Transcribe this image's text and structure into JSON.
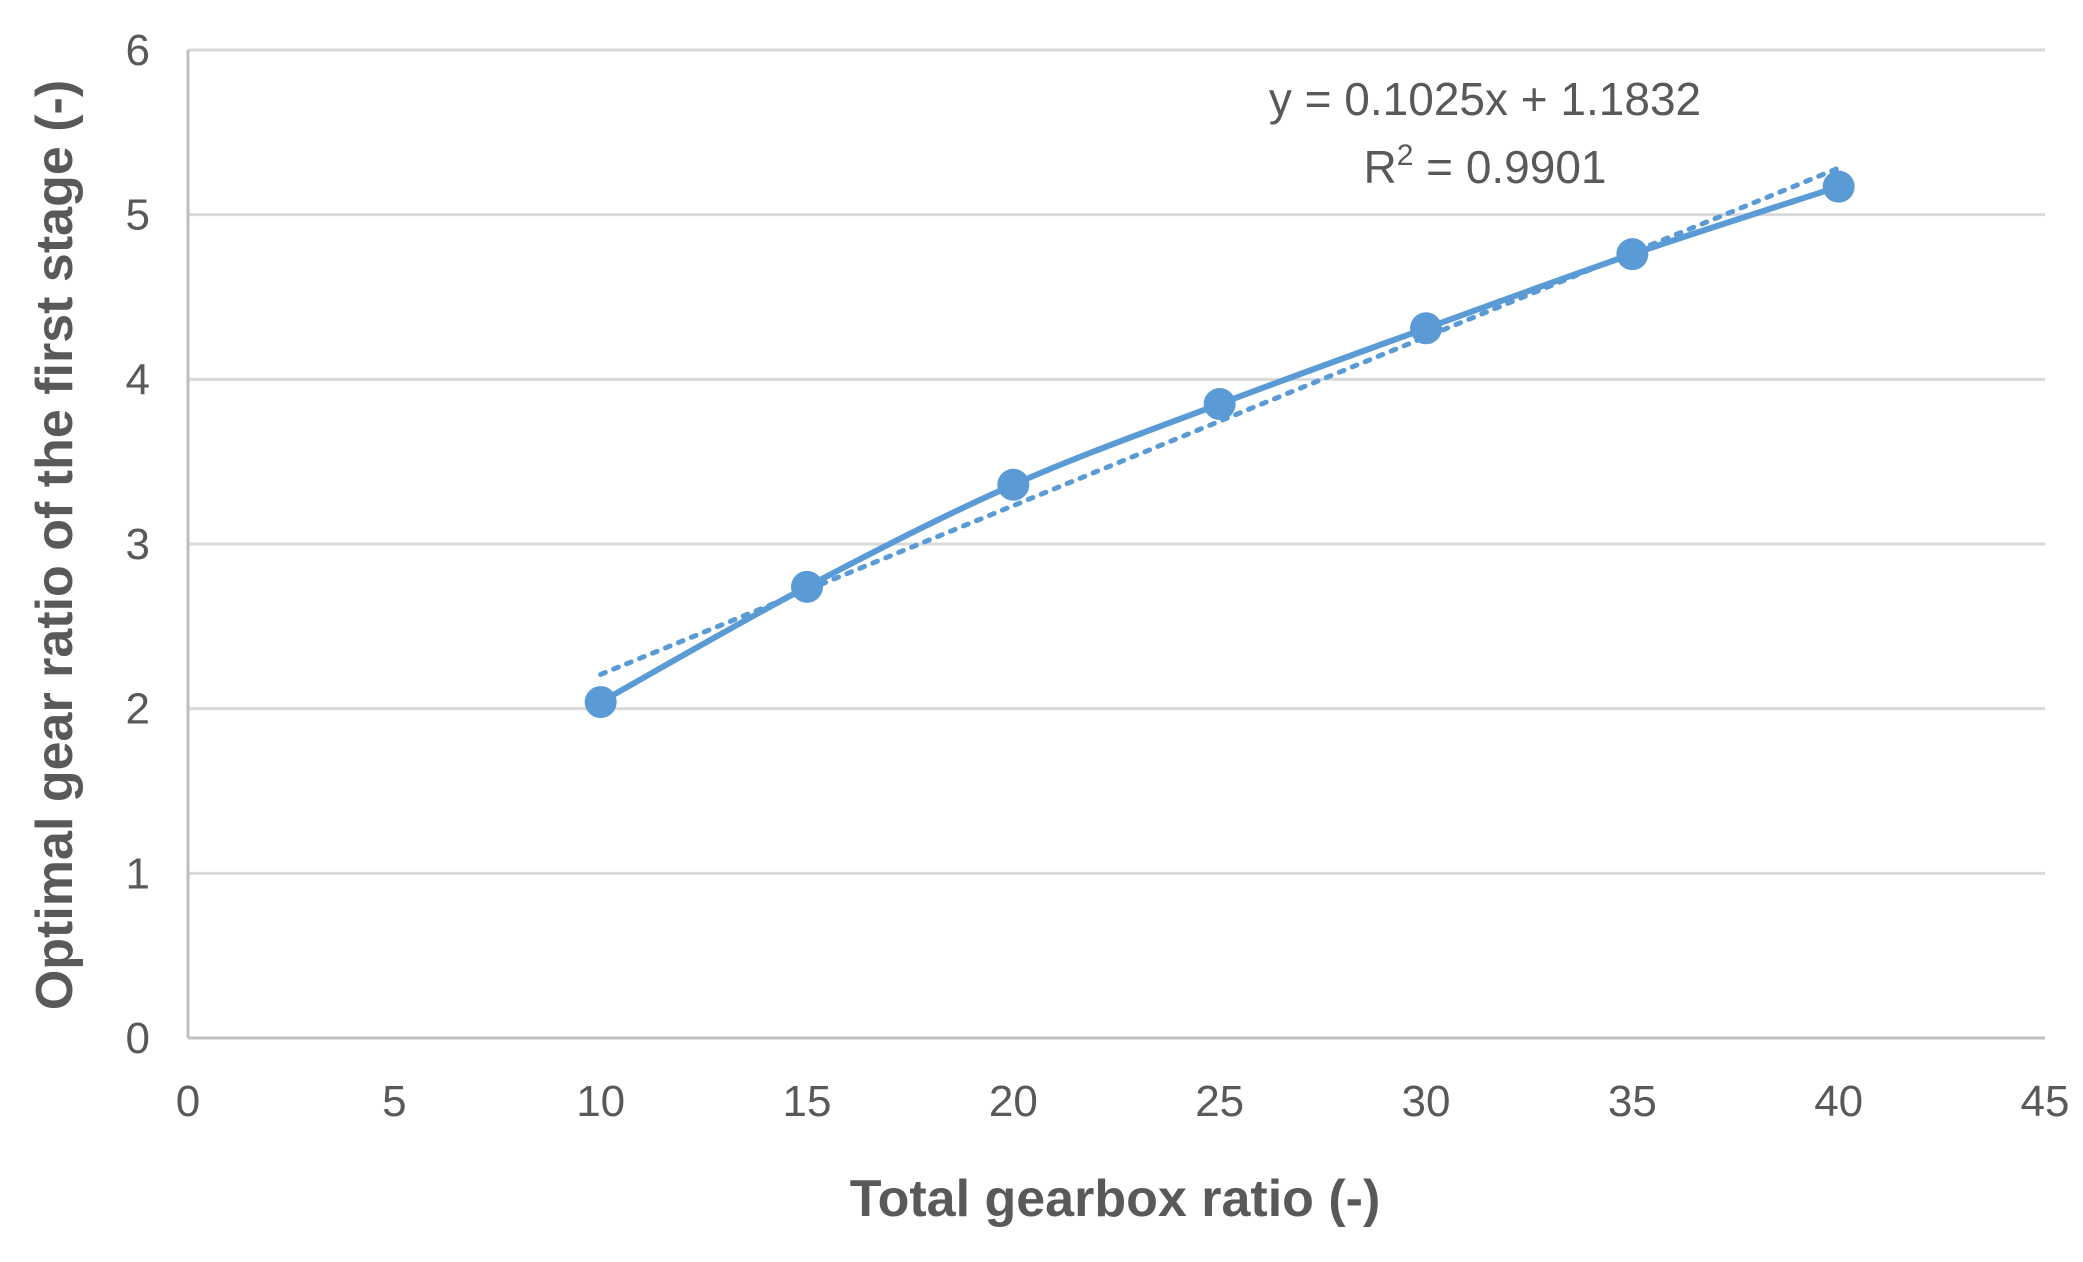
{
  "chart_data": {
    "type": "scatter",
    "title": "",
    "xlabel": "Total gearbox ratio (-)",
    "ylabel": "Optimal gear ratio of the first stage (-)",
    "xlim": [
      0,
      45
    ],
    "ylim": [
      0,
      6
    ],
    "xticks": [
      0,
      5,
      10,
      15,
      20,
      25,
      30,
      35,
      40,
      45
    ],
    "yticks": [
      0,
      1,
      2,
      3,
      4,
      5,
      6
    ],
    "grid": "horizontal",
    "legend": "none",
    "series": [
      {
        "x": [
          10,
          15,
          20,
          25,
          30,
          35,
          40
        ],
        "y": [
          2.04,
          2.74,
          3.36,
          3.85,
          4.31,
          4.76,
          5.17
        ],
        "marker": "circle",
        "line": "smooth",
        "color": "#5B9BD5"
      }
    ],
    "trendline": {
      "kind": "linear",
      "slope": 0.1025,
      "intercept": 1.1832,
      "x_range": [
        10,
        40
      ],
      "style": "dotted",
      "color": "#5B9BD5"
    },
    "annotations": {
      "equation": "y = 0.1025x + 1.1832",
      "r_squared_prefix": "R",
      "r_squared_sup": "2",
      "r_squared_rest": " = 0.9901"
    },
    "colors": {
      "axis": "#bfbfbf",
      "grid": "#d9d9d9",
      "text": "#595959"
    }
  }
}
